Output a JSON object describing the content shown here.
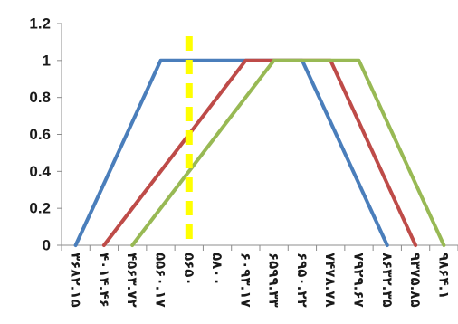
{
  "chart_data": {
    "type": "line",
    "categories": [
      "۳۶۸۲.۱۵",
      "۴۰۱۴.۴۶",
      "۴۵۶۳.۷۲",
      "۵۵۶۰.۱۷",
      "۵۶۵۰",
      "۵۸۰۰",
      "۶۰۹۳.۱۷",
      "۶۵۹۹.۳۳",
      "۶۹۵۰.۲۲",
      "۷۴۷۸.۷۸",
      "۷۹۲۹.۶۷",
      "۸۶۳۲.۳۵",
      "۹۳۷۵.۸۵",
      "۹۸۶۴.۱"
    ],
    "series": [
      {
        "color": "#4a7ebb",
        "values": [
          0,
          null,
          null,
          1,
          null,
          null,
          null,
          null,
          1,
          null,
          null,
          0,
          null,
          null
        ]
      },
      {
        "color": "#be4b48",
        "values": [
          null,
          0,
          null,
          null,
          null,
          null,
          1,
          null,
          null,
          1,
          null,
          null,
          0,
          null
        ]
      },
      {
        "color": "#98b954",
        "values": [
          null,
          null,
          0,
          null,
          null,
          null,
          null,
          1,
          null,
          null,
          1,
          null,
          null,
          0
        ]
      }
    ],
    "threshold": {
      "category": "۵۶۵۰",
      "color": "#ffff00",
      "style": "dashed"
    },
    "yticks": [
      "0",
      "0.2",
      "0.4",
      "0.6",
      "0.8",
      "1",
      "1.2"
    ],
    "ylim": [
      0,
      1.2
    ],
    "grid": false
  }
}
